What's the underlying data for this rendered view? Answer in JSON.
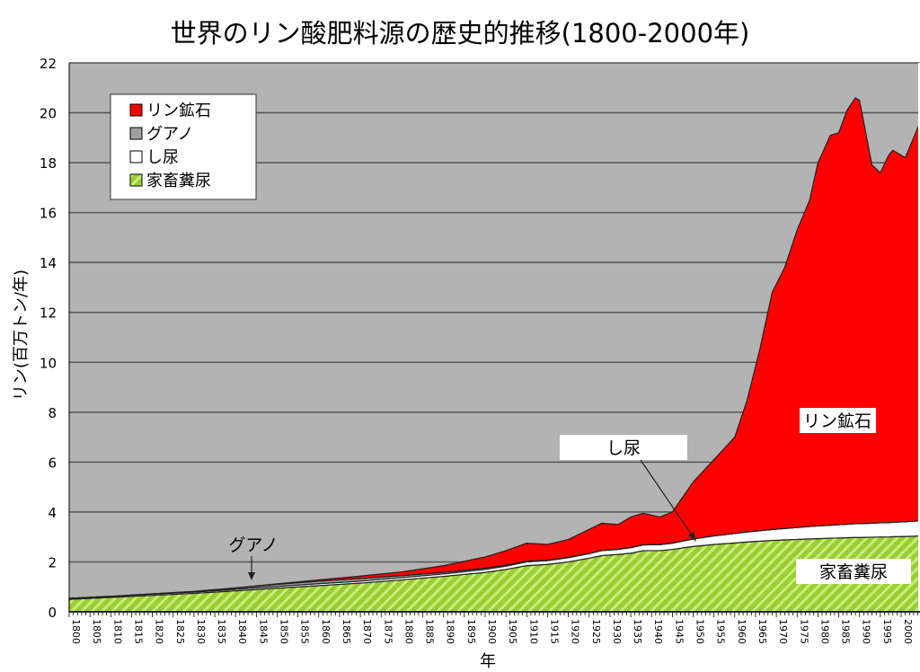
{
  "chart_data": {
    "type": "area",
    "stacked": true,
    "title": "世界のリン酸肥料源の歴史的推移(1800-2000年)",
    "xlabel": "年",
    "ylabel": "リン(百万トン/年)",
    "xlim": [
      1800,
      2005
    ],
    "ylim": [
      0,
      22
    ],
    "yticks": [
      0,
      2,
      4,
      6,
      8,
      10,
      12,
      14,
      16,
      18,
      20,
      22
    ],
    "xticks": [
      1800,
      1805,
      1810,
      1815,
      1820,
      1825,
      1830,
      1835,
      1840,
      1845,
      1850,
      1855,
      1860,
      1865,
      1870,
      1875,
      1880,
      1885,
      1890,
      1895,
      1900,
      1905,
      1910,
      1915,
      1920,
      1925,
      1930,
      1935,
      1940,
      1945,
      1950,
      1955,
      1960,
      1965,
      1970,
      1975,
      1980,
      1985,
      1990,
      1995,
      2000
    ],
    "grid": true,
    "legend_position": "top-left",
    "x": [
      1800,
      1810,
      1820,
      1830,
      1840,
      1850,
      1860,
      1870,
      1880,
      1890,
      1900,
      1905,
      1910,
      1915,
      1920,
      1925,
      1928,
      1932,
      1935,
      1938,
      1942,
      1945,
      1950,
      1955,
      1960,
      1963,
      1966,
      1969,
      1972,
      1975,
      1978,
      1980,
      1983,
      1985,
      1987,
      1989,
      1990,
      1993,
      1995,
      1997,
      1998,
      2001,
      2003,
      2005
    ],
    "series": [
      {
        "name": "家畜糞尿",
        "color": "#9acd32",
        "pattern": "hatch",
        "values": [
          0.5,
          0.58,
          0.66,
          0.74,
          0.84,
          0.95,
          1.05,
          1.15,
          1.28,
          1.42,
          1.58,
          1.7,
          1.85,
          1.9,
          2.0,
          2.15,
          2.25,
          2.3,
          2.35,
          2.45,
          2.45,
          2.5,
          2.62,
          2.7,
          2.76,
          2.8,
          2.83,
          2.86,
          2.88,
          2.9,
          2.92,
          2.93,
          2.95,
          2.96,
          2.97,
          2.98,
          2.98,
          2.99,
          3.0,
          3.0,
          3.01,
          3.02,
          3.03,
          3.05
        ]
      },
      {
        "name": "し尿",
        "color": "#ffffff",
        "values": [
          0.04,
          0.04,
          0.05,
          0.05,
          0.06,
          0.07,
          0.08,
          0.08,
          0.09,
          0.1,
          0.12,
          0.13,
          0.15,
          0.15,
          0.17,
          0.18,
          0.2,
          0.2,
          0.22,
          0.23,
          0.24,
          0.25,
          0.3,
          0.34,
          0.38,
          0.4,
          0.42,
          0.44,
          0.46,
          0.48,
          0.5,
          0.51,
          0.52,
          0.53,
          0.54,
          0.55,
          0.55,
          0.56,
          0.57,
          0.57,
          0.58,
          0.59,
          0.6,
          0.6
        ]
      },
      {
        "name": "グアノ",
        "color": "#a0a0a0",
        "values": [
          0,
          0,
          0.01,
          0.02,
          0.05,
          0.08,
          0.1,
          0.1,
          0.08,
          0.06,
          0.05,
          0.04,
          0.03,
          0.02,
          0.02,
          0.01,
          0.01,
          0.01,
          0.01,
          0.01,
          0.01,
          0.01,
          0,
          0,
          0,
          0,
          0,
          0,
          0,
          0,
          0,
          0,
          0,
          0,
          0,
          0,
          0,
          0,
          0,
          0,
          0,
          0,
          0,
          0
        ]
      },
      {
        "name": "リン鉱石",
        "color": "#ff0000",
        "values": [
          0,
          0,
          0,
          0.01,
          0.01,
          0.02,
          0.05,
          0.1,
          0.15,
          0.27,
          0.45,
          0.58,
          0.72,
          0.63,
          0.71,
          0.96,
          1.09,
          0.99,
          1.22,
          1.26,
          1.1,
          1.24,
          2.28,
          3.06,
          3.86,
          5.3,
          7.25,
          9.5,
          10.46,
          11.92,
          13.08,
          14.56,
          15.63,
          15.71,
          16.59,
          17.07,
          16.97,
          14.35,
          14.03,
          14.73,
          14.91,
          14.59,
          15.37,
          16.15
        ]
      }
    ],
    "legend": [
      "リン鉱石",
      "グアノ",
      "し尿",
      "家畜糞尿"
    ],
    "annotations": {
      "rock": "リン鉱石",
      "excreta": "し尿",
      "guano": "グアノ",
      "manure": "家畜糞尿"
    },
    "colors": {
      "plot_bg": "#b3b3b3",
      "grid": "#555555"
    }
  }
}
